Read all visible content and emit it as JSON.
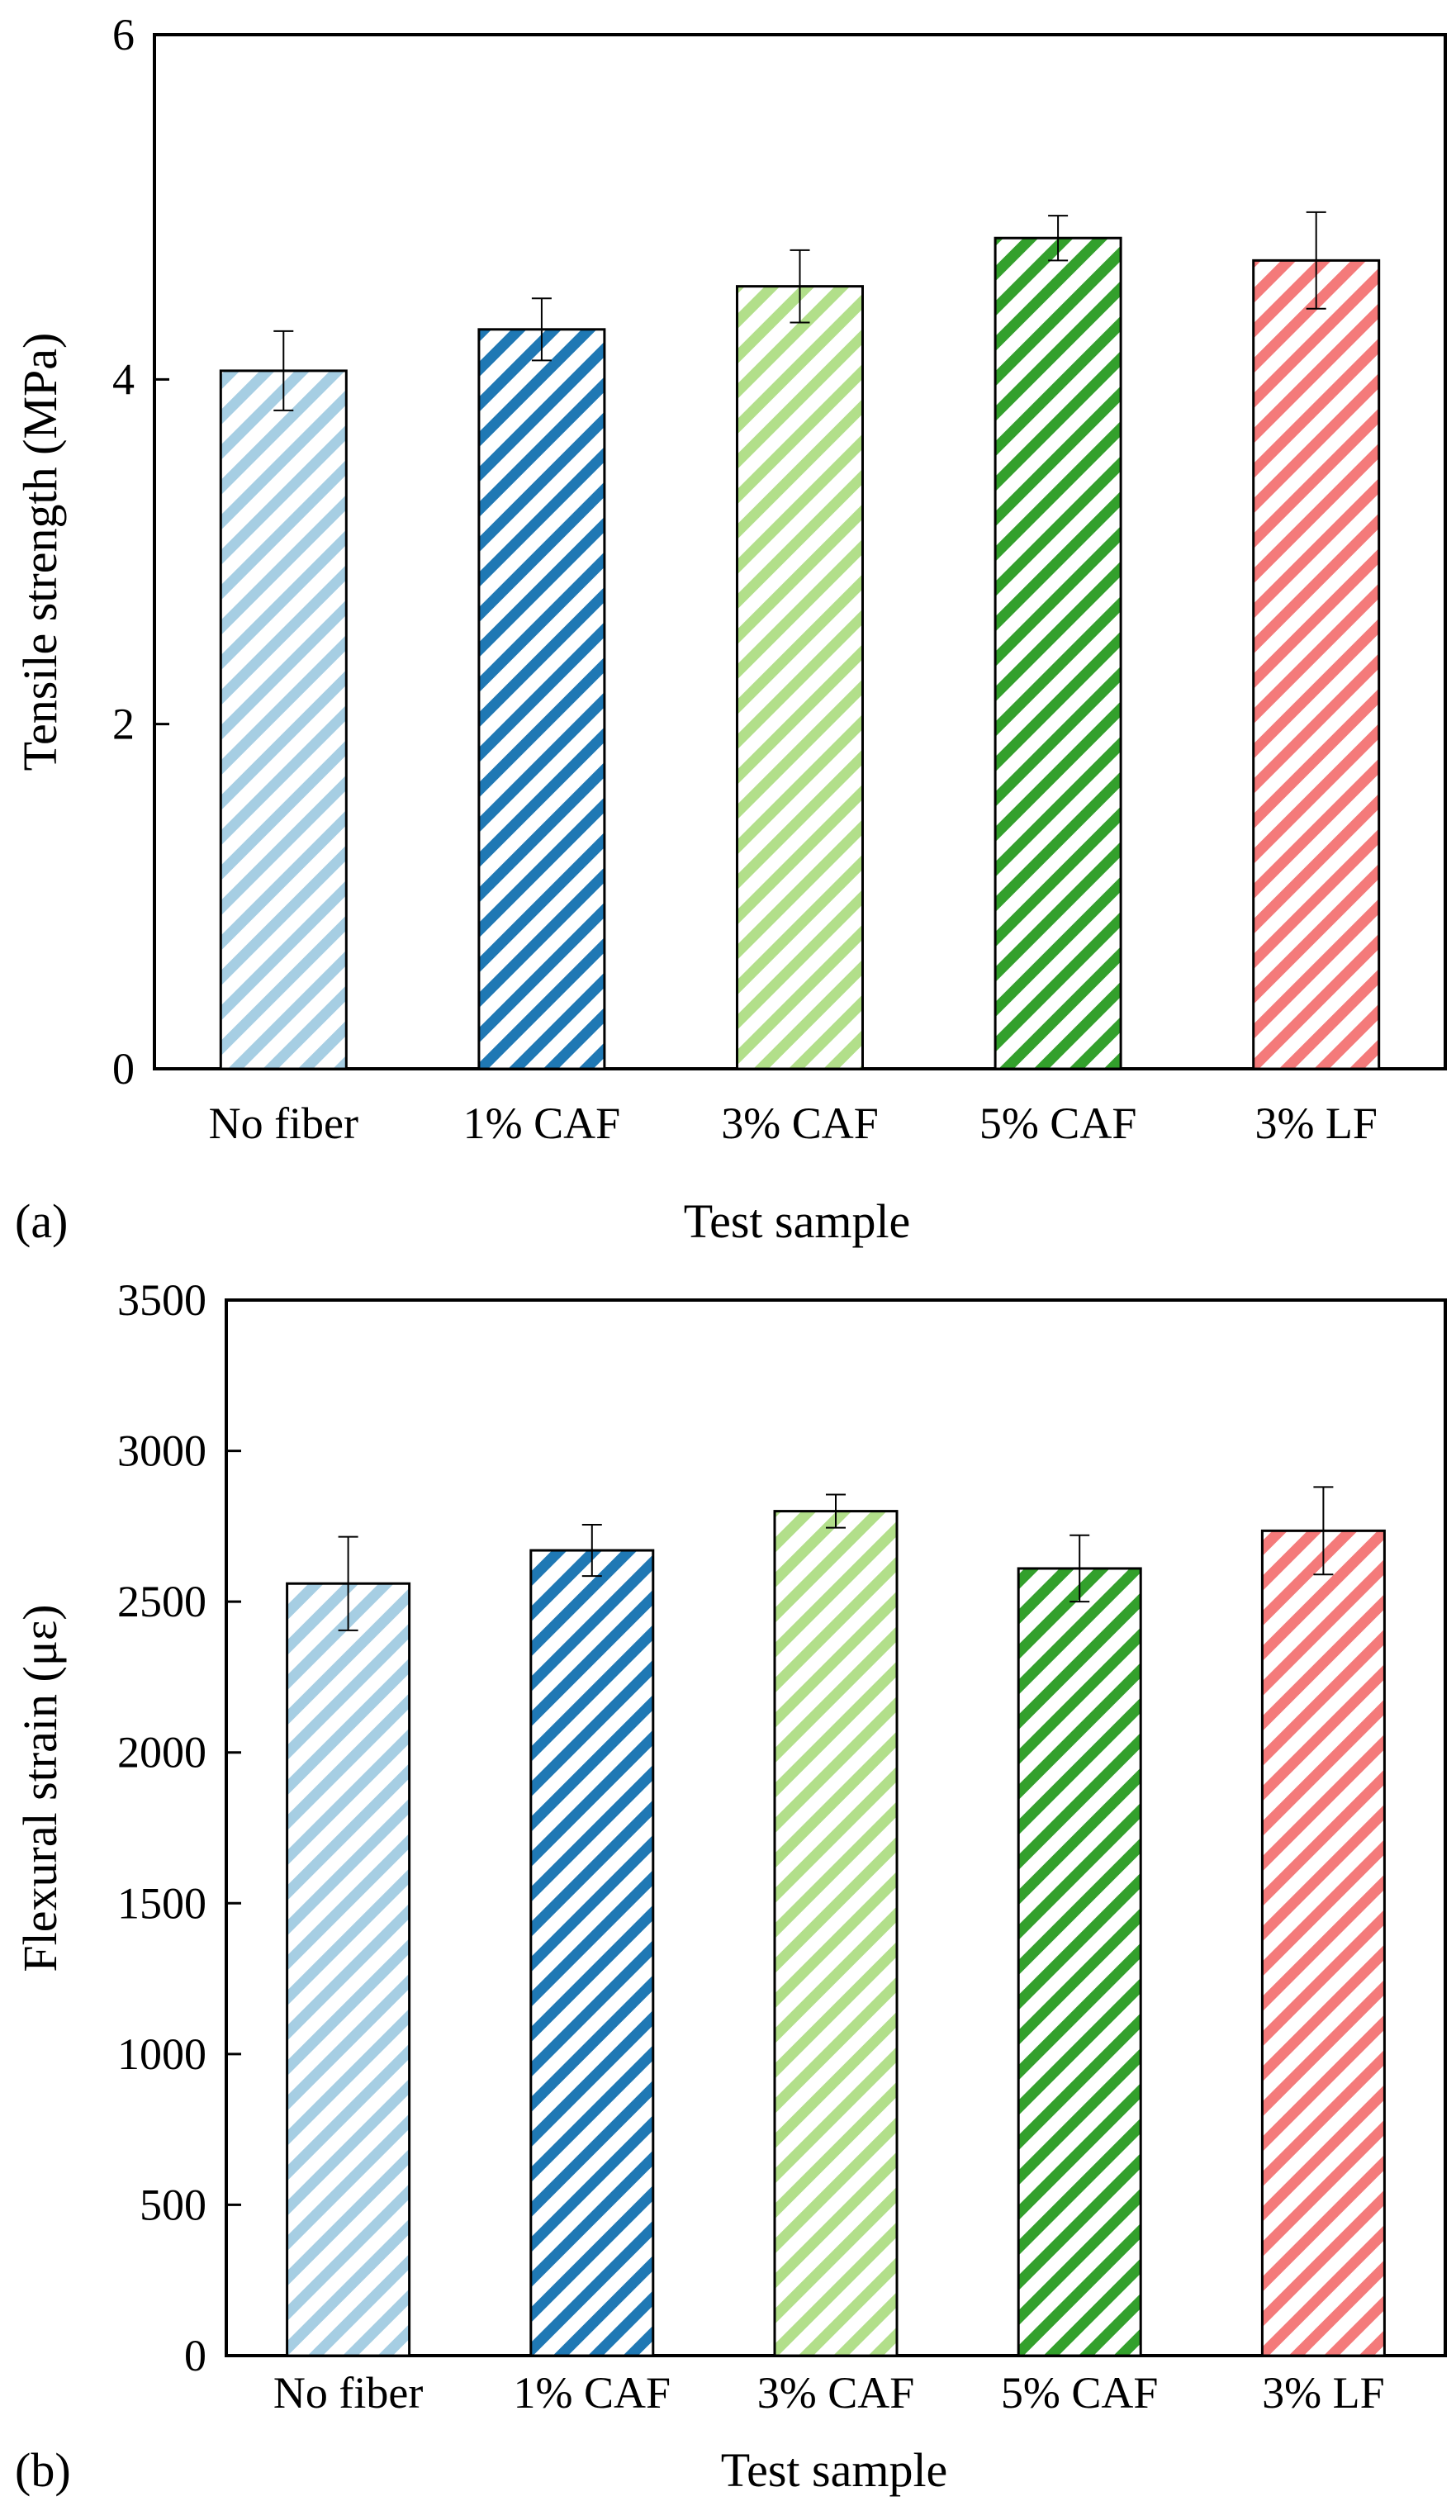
{
  "chart_data": [
    {
      "type": "bar",
      "panel_label": "(a)",
      "categories": [
        "No fiber",
        "1% CAF",
        "3% CAF",
        "5% CAF",
        "3% LF"
      ],
      "values": [
        4.05,
        4.29,
        4.54,
        4.82,
        4.69
      ],
      "errors": [
        0.23,
        0.18,
        0.21,
        0.13,
        0.28
      ],
      "xlabel": "Test sample",
      "ylabel": "Tensile strength (MPa)",
      "ylim": [
        0,
        6
      ],
      "yticks": [
        "0",
        "2",
        "4",
        "6"
      ],
      "colors": [
        "#a6cee3",
        "#1f78b4",
        "#b2df8a",
        "#33a02c",
        "#f47a7a"
      ],
      "hatch": "diagonal"
    },
    {
      "type": "bar",
      "panel_label": "(b)",
      "categories": [
        "No fiber",
        "1% CAF",
        "3% CAF",
        "5% CAF",
        "3% LF"
      ],
      "values": [
        2560,
        2670,
        2800,
        2610,
        2735
      ],
      "errors": [
        155,
        85,
        55,
        110,
        145
      ],
      "xlabel": "Test sample",
      "ylabel": "Flexural strain (με)",
      "ylim": [
        0,
        3500
      ],
      "yticks": [
        "0",
        "500",
        "1000",
        "1500",
        "2000",
        "2500",
        "3000",
        "3500"
      ],
      "colors": [
        "#a6cee3",
        "#1f78b4",
        "#b2df8a",
        "#33a02c",
        "#f47a7a"
      ],
      "hatch": "diagonal"
    }
  ]
}
